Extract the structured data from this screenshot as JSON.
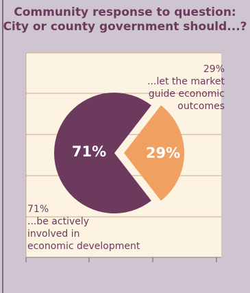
{
  "chart_data": {
    "type": "pie",
    "title": "Community response to question:",
    "subtitle": "City or county government should...?",
    "slices": [
      {
        "label_pct": "71%",
        "value": 71,
        "annotation": "71%",
        "annotation_lines": [
          "...be actively",
          "involved in",
          "economic development"
        ],
        "color": "#6b3a5c"
      },
      {
        "label_pct": "29%",
        "value": 29,
        "annotation": "29%",
        "annotation_lines": [
          "...let the market",
          "guide economic",
          "outcomes"
        ],
        "color": "#f0a060"
      }
    ],
    "grid": true
  },
  "colors": {
    "background": "#cfc5d1",
    "plot_background": "#fdf3e3",
    "grid": "#c8a78a",
    "text": "#6b3a5c"
  }
}
